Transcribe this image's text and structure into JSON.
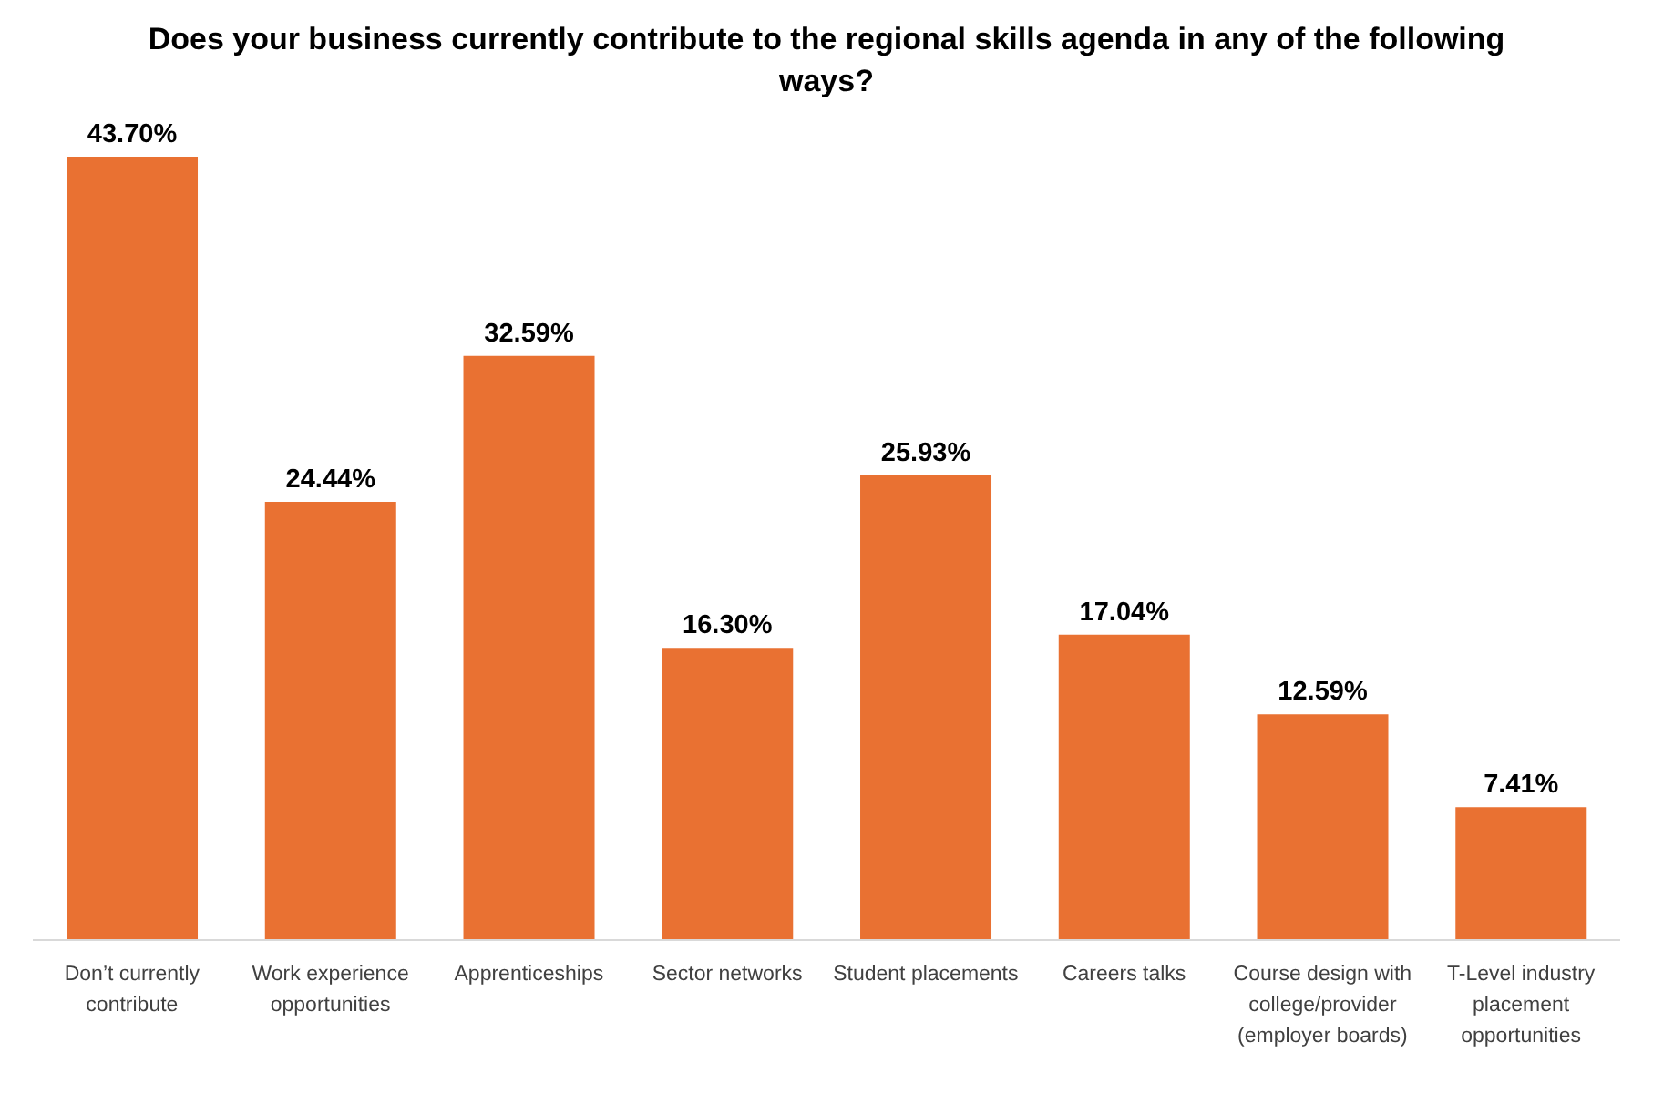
{
  "chart_data": {
    "type": "bar",
    "title": "Does your business currently contribute to the regional skills agenda in any of the following ways?",
    "categories": [
      "Don’t currently contribute",
      "Work experience opportunities",
      "Apprenticeships",
      "Sector networks",
      "Student placements",
      "Careers talks",
      "Course design with college/provider (employer boards)",
      "T-Level industry placement opportunities"
    ],
    "values": [
      43.7,
      24.44,
      32.59,
      16.3,
      25.93,
      17.04,
      12.59,
      7.41
    ],
    "value_labels": [
      "43.70%",
      "24.44%",
      "32.59%",
      "16.30%",
      "25.93%",
      "17.04%",
      "12.59%",
      "7.41%"
    ],
    "color": "#e97132"
  }
}
